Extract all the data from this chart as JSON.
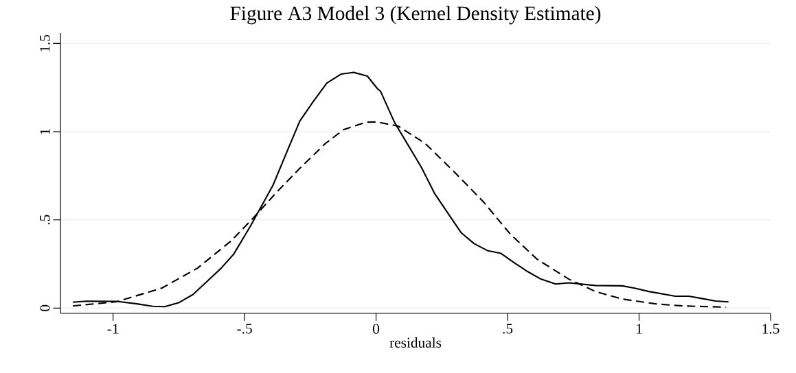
{
  "chart_data": {
    "type": "line",
    "title": "Figure A3 Model 3 (Kernel Density Estimate)",
    "xlabel": "residuals",
    "xlim": [
      -1.2,
      1.5
    ],
    "ylim": [
      -0.03,
      1.56
    ],
    "xticks": [
      {
        "value": -1,
        "label": "-1"
      },
      {
        "value": -0.5,
        "label": "-.5"
      },
      0,
      {
        "value": 0.5,
        "label": ".5"
      },
      1,
      1.5
    ],
    "yticks": [
      0,
      {
        "value": 0.5,
        "label": ".5"
      },
      1,
      1.5
    ],
    "grid": "y",
    "series": [
      {
        "color": "#000000",
        "line_style": "solid",
        "x": [
          -1.153,
          -1.102,
          -0.986,
          -0.909,
          -0.849,
          -0.803,
          -0.751,
          -0.696,
          -0.64,
          -0.589,
          -0.542,
          -0.478,
          -0.392,
          -0.337,
          -0.29,
          -0.238,
          -0.187,
          -0.132,
          -0.085,
          -0.033,
          0.005,
          0.017,
          0.07,
          0.172,
          0.222,
          0.323,
          0.373,
          0.423,
          0.475,
          0.526,
          0.576,
          0.627,
          0.683,
          0.733,
          0.834,
          0.936,
          0.986,
          1.037,
          1.138,
          1.189,
          1.239,
          1.29,
          1.34
        ],
        "values": [
          0.033,
          0.039,
          0.038,
          0.024,
          0.01,
          0.008,
          0.03,
          0.077,
          0.155,
          0.226,
          0.304,
          0.464,
          0.696,
          0.893,
          1.06,
          1.173,
          1.276,
          1.327,
          1.336,
          1.315,
          1.244,
          1.229,
          1.053,
          0.799,
          0.651,
          0.428,
          0.365,
          0.326,
          0.31,
          0.256,
          0.207,
          0.164,
          0.136,
          0.143,
          0.128,
          0.126,
          0.112,
          0.094,
          0.067,
          0.067,
          0.054,
          0.04,
          0.035
        ]
      },
      {
        "color": "#000000",
        "line_style": "dashed",
        "x": [
          -1.153,
          -0.986,
          -0.815,
          -0.679,
          -0.551,
          -0.466,
          -0.379,
          -0.294,
          -0.191,
          -0.123,
          -0.038,
          0.004,
          0.085,
          0.187,
          0.298,
          0.409,
          0.511,
          0.612,
          0.733,
          0.834,
          0.936,
          1.067,
          1.168,
          1.33
        ],
        "values": [
          0.012,
          0.036,
          0.113,
          0.226,
          0.381,
          0.512,
          0.655,
          0.786,
          0.935,
          1.012,
          1.054,
          1.055,
          1.031,
          0.933,
          0.771,
          0.601,
          0.418,
          0.277,
          0.164,
          0.094,
          0.051,
          0.023,
          0.012,
          0.005
        ]
      }
    ]
  }
}
